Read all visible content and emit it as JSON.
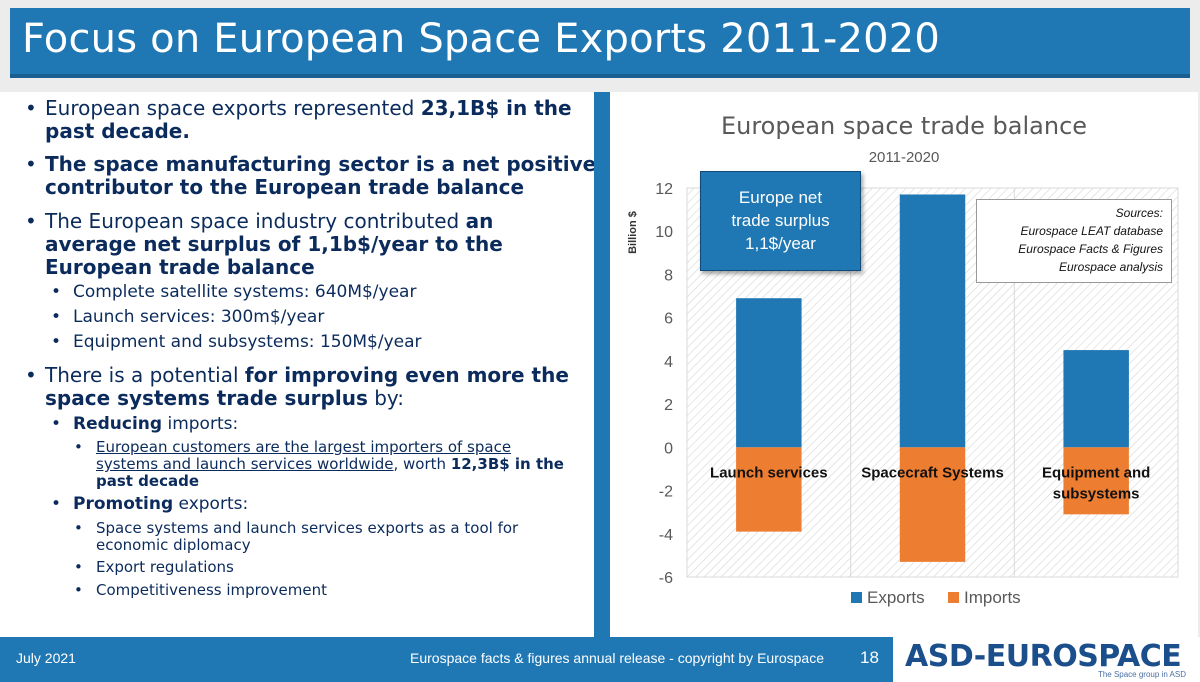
{
  "slide": {
    "title": "Focus on European Space Exports 2011-2020",
    "date": "July 2021",
    "credit": "Eurospace facts & figures annual release - copyright by Eurospace",
    "page_number": "18",
    "logo": {
      "text": "ASD-EUROSPACE",
      "tagline": "The Space group in ASD"
    }
  },
  "bullets": {
    "b1": {
      "line1_normal": "European space exports represented ",
      "line1_bold": "23,1B$ in the",
      "line2_bold": "past decade."
    },
    "b2": {
      "line1": "The space manufacturing sector is a net positive",
      "line2": "contributor to the European trade balance"
    },
    "b3": {
      "line1_normal": "The European space industry contributed ",
      "line1_bold": "an",
      "line2": "average net surplus of 1,1b$/year to the",
      "line3": "European trade balance"
    },
    "b3_sub": [
      "Complete satellite systems: 640M$/year",
      "Launch services: 300m$/year",
      "Equipment and subsystems: 150M$/year"
    ],
    "b4": {
      "line1_normal": "There is a potential ",
      "line1_bold": "for improving even more the",
      "line2_bold": "space systems trade surplus",
      "line2_normal": " by:"
    },
    "reducing": {
      "bold": "Reducing",
      "normal": " imports:"
    },
    "reducing_sub": {
      "line1": "European customers are the largest importers of space",
      "line2_underlined": "systems and launch services worldwide",
      "line2_normal": ", worth ",
      "line2_bold": "12,3B$ in the",
      "line3_bold": "past decade"
    },
    "promoting": {
      "bold": "Promoting",
      "normal": " exports:"
    },
    "promoting_sub": {
      "line1": "Space systems and launch services exports as a tool for",
      "line2": "economic diplomacy",
      "item2": "Export regulations",
      "item3": "Competitiveness improvement"
    }
  },
  "callout": {
    "line1": "Europe net",
    "line2": "trade surplus",
    "line3": "1,1$/year"
  },
  "sources": {
    "line1": "Sources:",
    "line2": "Eurospace LEAT database",
    "line3": "Eurospace Facts & Figures",
    "line4": "Eurospace analysis"
  },
  "colors": {
    "exports": "#1f77b4",
    "imports": "#ed7d31",
    "accent": "#1f77b4",
    "text": "#0b2b5c"
  },
  "chart_data": {
    "type": "bar",
    "stacked": true,
    "title": "European space trade balance",
    "subtitle": "2011-2020",
    "ylabel": "Billion $",
    "xlabel": "",
    "ylim": [
      -6,
      12
    ],
    "yticks": [
      -6,
      -4,
      -2,
      0,
      2,
      4,
      6,
      8,
      10,
      12
    ],
    "categories": [
      "Launch services",
      "Spacecraft Systems",
      "Equipment and subsystems"
    ],
    "series": [
      {
        "name": "Exports",
        "values": [
          6.9,
          11.7,
          4.5
        ]
      },
      {
        "name": "Imports",
        "values": [
          -3.9,
          -5.3,
          -3.1
        ]
      }
    ],
    "legend": "bottom",
    "grid": false
  }
}
